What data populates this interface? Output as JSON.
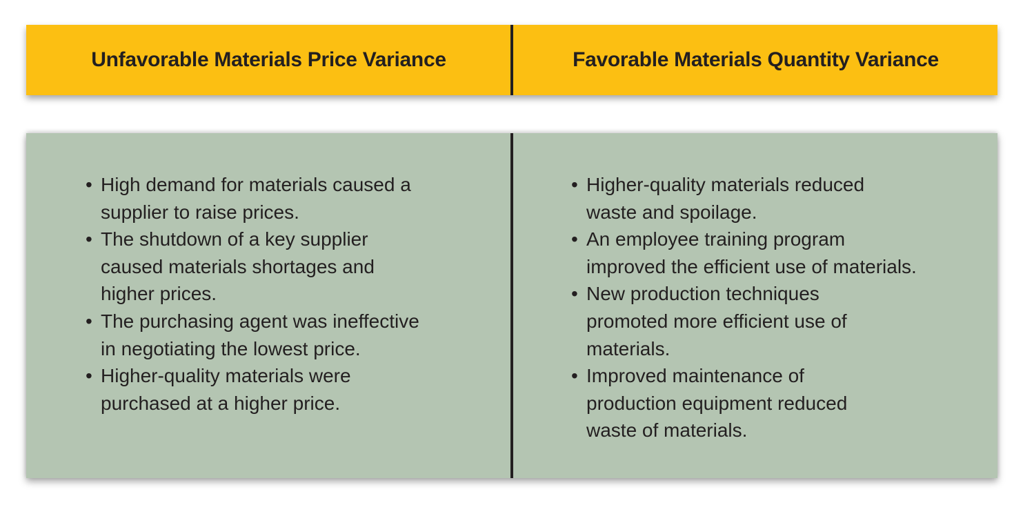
{
  "header": {
    "left_title": "Unfavorable Materials Price Variance",
    "right_title": "Favorable Materials Quantity Variance"
  },
  "left_column": {
    "bullet": "•",
    "items": [
      {
        "lines": [
          "High demand for materials caused a",
          "supplier to raise prices."
        ]
      },
      {
        "lines": [
          "The shutdown of a key supplier",
          "caused materials shortages and",
          "higher prices."
        ]
      },
      {
        "lines": [
          "The purchasing agent was ineffective",
          "in negotiating the lowest price."
        ]
      },
      {
        "lines": [
          "Higher-quality materials were",
          "purchased at a higher price."
        ]
      }
    ]
  },
  "right_column": {
    "bullet": "•",
    "items": [
      {
        "lines": [
          "Higher-quality materials reduced",
          "waste and spoilage."
        ]
      },
      {
        "lines": [
          "An employee training program",
          "improved the efficient use of materials."
        ]
      },
      {
        "lines": [
          "New production techniques",
          "promoted more efficient use of",
          "materials."
        ]
      },
      {
        "lines": [
          "Improved maintenance of",
          "production equipment reduced",
          "waste of materials."
        ]
      }
    ]
  },
  "colors": {
    "header_background": "#fcbf12",
    "body_background": "#b4c5b2",
    "text": "#231f20",
    "divider": "#231f20"
  }
}
